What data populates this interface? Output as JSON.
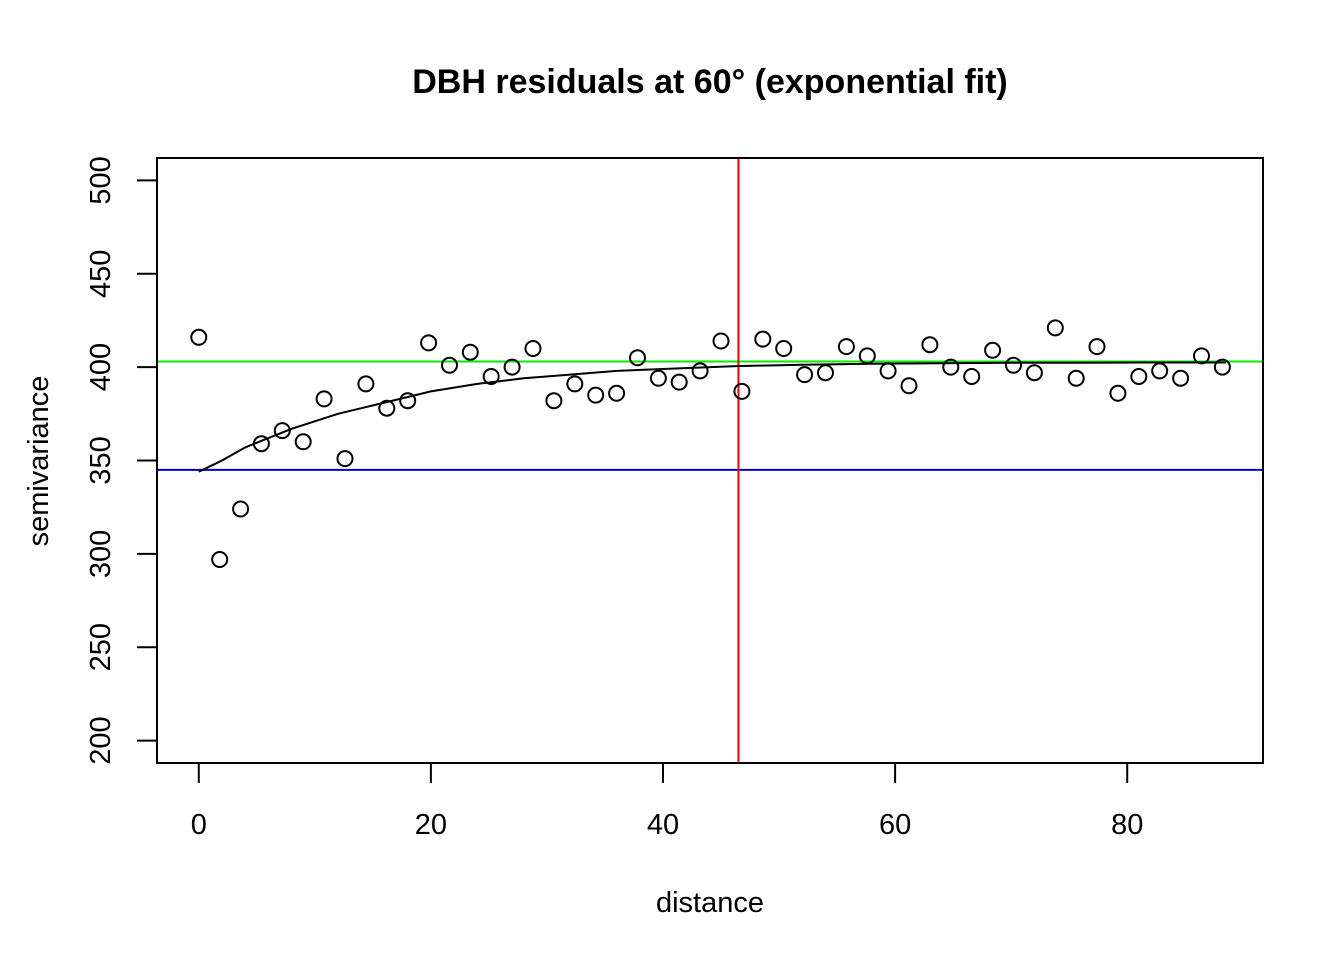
{
  "chart_data": {
    "type": "scatter",
    "title": "DBH residuals at 60° (exponential fit)",
    "xlabel": "distance",
    "ylabel": "semivariance",
    "xlim": [
      -3.6,
      91.7
    ],
    "ylim": [
      188,
      512
    ],
    "x_ticks": [
      0,
      20,
      40,
      60,
      80
    ],
    "y_ticks": [
      200,
      250,
      300,
      350,
      400,
      450,
      500
    ],
    "grid": false,
    "legend": "none",
    "points": {
      "x": [
        0.0,
        1.8,
        3.6,
        5.4,
        7.2,
        9.0,
        10.8,
        12.6,
        14.4,
        16.2,
        18.0,
        19.8,
        21.6,
        23.4,
        25.2,
        27.0,
        28.8,
        30.6,
        32.4,
        34.2,
        36.0,
        37.8,
        39.6,
        41.4,
        43.2,
        45.0,
        46.8,
        48.6,
        50.4,
        52.2,
        54.0,
        55.8,
        57.6,
        59.4,
        61.2,
        63.0,
        64.8,
        66.6,
        68.4,
        70.2,
        72.0,
        73.8,
        75.6,
        77.4,
        79.2,
        81.0,
        82.8,
        84.6,
        86.4,
        88.2
      ],
      "y": [
        416,
        297,
        324,
        359,
        366,
        360,
        383,
        351,
        391,
        378,
        382,
        413,
        401,
        408,
        395,
        400,
        410,
        382,
        391,
        385,
        386,
        405,
        394,
        392,
        398,
        414,
        387,
        415,
        410,
        396,
        397,
        411,
        406,
        398,
        390,
        412,
        400,
        395,
        409,
        401,
        397,
        421,
        394,
        411,
        386,
        395,
        398,
        394,
        406,
        400
      ]
    },
    "fitted_curve": {
      "model": "exponential",
      "x": [
        0,
        2,
        4,
        6,
        8,
        10,
        12,
        14,
        16,
        18,
        20,
        24,
        28,
        32,
        36,
        40,
        46,
        52,
        58,
        64,
        70,
        76,
        82,
        88.5
      ],
      "y": [
        344,
        350,
        357,
        362,
        367,
        371,
        375,
        378,
        381,
        384,
        387,
        391,
        394,
        396,
        398,
        399,
        400.5,
        401.3,
        401.8,
        402.1,
        402.3,
        402.4,
        402.5,
        402.5
      ]
    },
    "reference_lines": [
      {
        "orientation": "horizontal",
        "value": 403,
        "color": "#00ee00"
      },
      {
        "orientation": "horizontal",
        "value": 345,
        "color": "#0000cc"
      },
      {
        "orientation": "vertical",
        "value": 46.5,
        "color": "#ff0000"
      }
    ]
  }
}
